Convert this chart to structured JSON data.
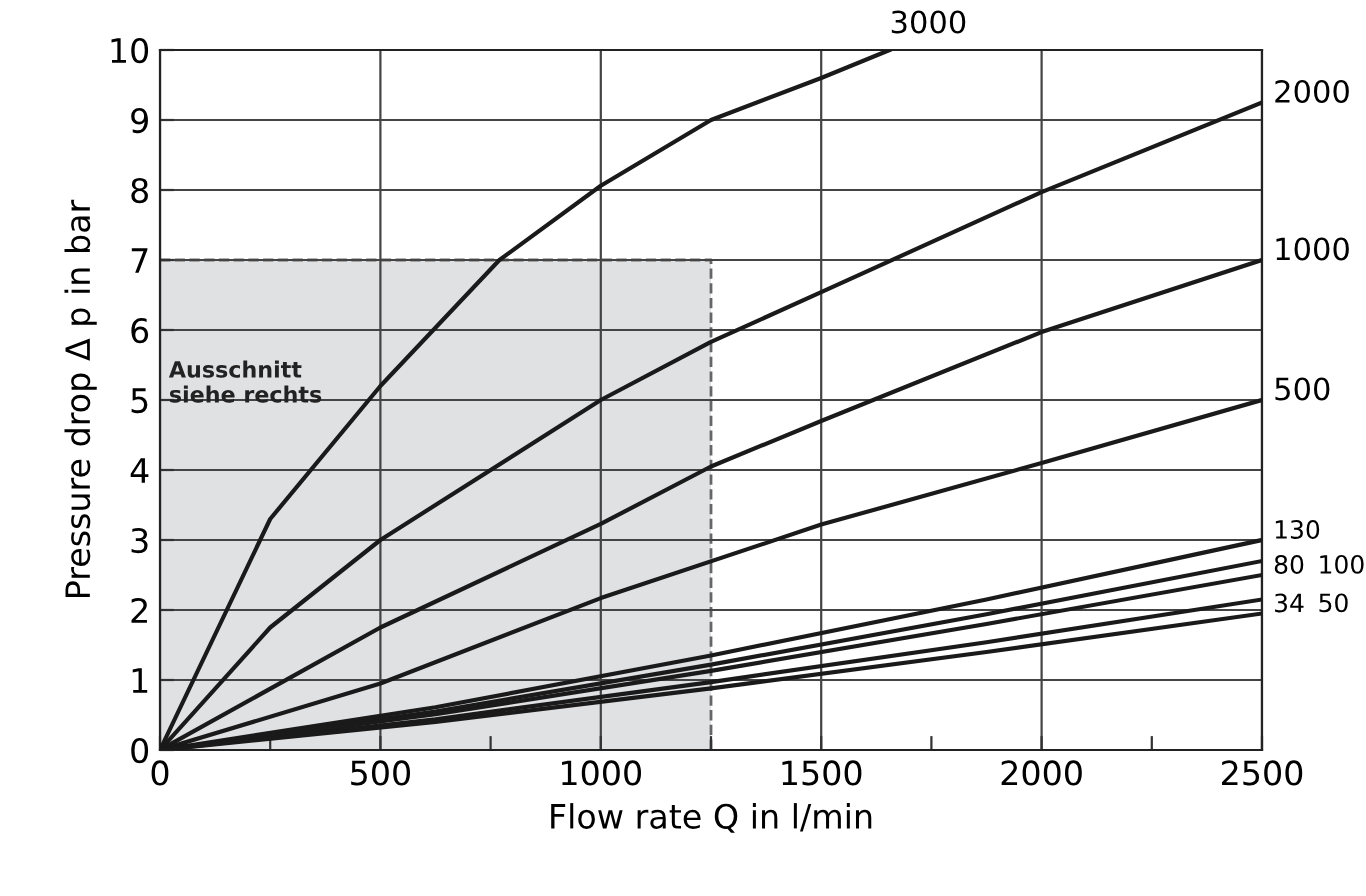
{
  "chart_data": {
    "type": "line",
    "xlabel": "Flow rate Q in l/min",
    "ylabel": "Pressure drop Δ p in bar",
    "xlim": [
      0,
      2500
    ],
    "ylim": [
      0,
      10
    ],
    "xticks": [
      0,
      {
        "value": 250,
        "label": null
      },
      500,
      {
        "value": 750,
        "label": null
      },
      1000,
      {
        "value": 1250,
        "label": null
      },
      1500,
      {
        "value": 1750,
        "label": null
      },
      2000,
      {
        "value": 2250,
        "label": null
      },
      2500
    ],
    "yticks": [
      0,
      1,
      2,
      3,
      4,
      5,
      6,
      7,
      8,
      9,
      10
    ],
    "grid": true,
    "legend": false,
    "marker": "none",
    "line_style": "solid",
    "annotations": [
      {
        "text": "Ausschnitt\nsiehe rechts",
        "x": 20,
        "y": 4.9
      }
    ],
    "series": [
      {
        "type": "area",
        "color": "#e0e1e3",
        "line_style": "dashed",
        "x": [
          0,
          1250
        ],
        "values": [
          7,
          7
        ]
      },
      {
        "name": "3000",
        "color": "#1a1a1a",
        "x": [
          0,
          250,
          500,
          770,
          1000,
          1250,
          1500,
          1655
        ],
        "values": [
          0,
          3.3,
          5.2,
          7.0,
          8.06,
          9.0,
          9.6,
          10
        ]
      },
      {
        "name": "2000",
        "color": "#1a1a1a",
        "x": [
          0,
          250,
          500,
          1000,
          1250,
          1500,
          2000,
          2500
        ],
        "values": [
          0,
          1.75,
          3.0,
          5.0,
          5.83,
          6.54,
          7.97,
          9.25
        ]
      },
      {
        "name": "1000",
        "color": "#1a1a1a",
        "x": [
          0,
          500,
          1000,
          1250,
          1500,
          2000,
          2500
        ],
        "values": [
          0,
          1.75,
          3.23,
          4.05,
          4.7,
          5.97,
          7.0
        ]
      },
      {
        "name": "500",
        "color": "#1a1a1a",
        "x": [
          0,
          500,
          1000,
          1500,
          2000,
          2500
        ],
        "values": [
          0,
          0.95,
          2.17,
          3.22,
          4.1,
          5.0
        ]
      },
      {
        "name": "130",
        "color": "#1a1a1a",
        "x": [
          0,
          625,
          1250,
          1875,
          2500
        ],
        "values": [
          0,
          0.61,
          1.35,
          2.15,
          3.0
        ]
      },
      {
        "name": "100",
        "color": "#1a1a1a",
        "x": [
          0,
          625,
          1250,
          1875,
          2500
        ],
        "values": [
          0,
          0.55,
          1.22,
          1.94,
          2.7
        ]
      },
      {
        "name": "80",
        "color": "#1a1a1a",
        "x": [
          0,
          625,
          1250,
          1875,
          2500
        ],
        "values": [
          0,
          0.51,
          1.13,
          1.8,
          2.5
        ]
      },
      {
        "name": "50",
        "color": "#1a1a1a",
        "x": [
          0,
          625,
          1250,
          1875,
          2500
        ],
        "values": [
          0,
          0.44,
          0.97,
          1.54,
          2.15
        ]
      },
      {
        "name": "34",
        "color": "#1a1a1a",
        "x": [
          0,
          625,
          1250,
          1875,
          2500
        ],
        "values": [
          0,
          0.4,
          0.88,
          1.4,
          1.95
        ]
      }
    ]
  }
}
